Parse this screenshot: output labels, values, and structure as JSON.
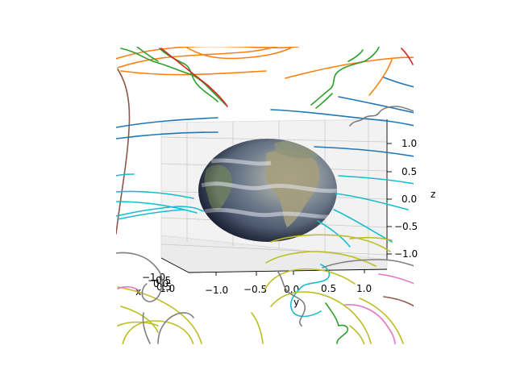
{
  "chart_data": {
    "type": "surface-3d",
    "title": "",
    "subtitle": "",
    "surface": "earth-texture-sphere",
    "xlabel": "x",
    "ylabel": "y",
    "zlabel": "z",
    "xlim": [
      -1.2,
      1.2
    ],
    "ylim": [
      -1.2,
      1.2
    ],
    "zlim": [
      -1.2,
      1.2
    ],
    "x_ticks": [
      "−1.0",
      "−0.5",
      "0.0",
      "0.5",
      "1.0"
    ],
    "y_ticks": [
      "−1.0",
      "−0.5",
      "0.0",
      "0.5",
      "1.0"
    ],
    "z_ticks": [
      "1.0",
      "0.5",
      "0.0",
      "−0.5",
      "−1.0"
    ],
    "grid": true,
    "legend": "none",
    "series_colors": [
      "#1f77b4",
      "#ff7f0e",
      "#2ca02c",
      "#d62728",
      "#8c564b",
      "#e377c2",
      "#7f7f7f",
      "#bcbd22",
      "#17becf"
    ],
    "background": "#ffffff",
    "pane_color": "#f2f2f2"
  }
}
